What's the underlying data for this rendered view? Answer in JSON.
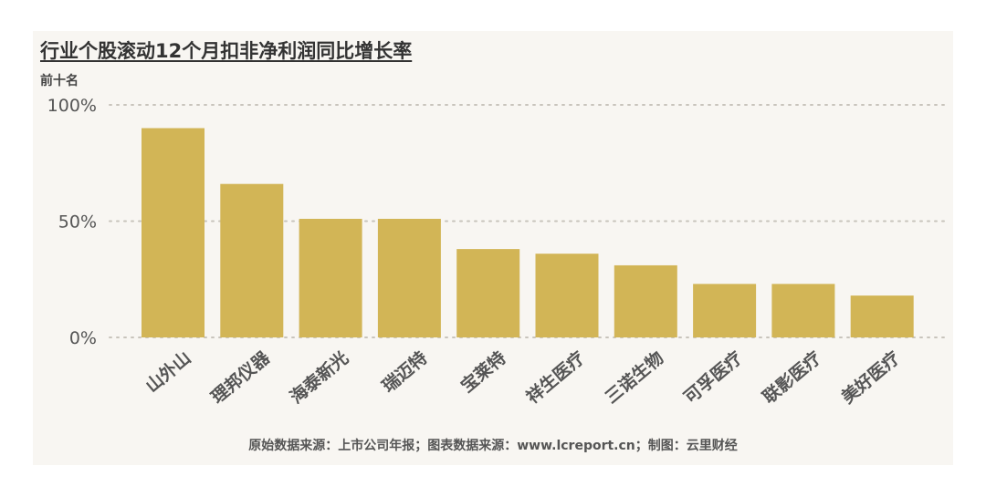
{
  "title": "行业个股滚动12个月扣非净利润同比增长率",
  "subtitle": "前十名",
  "footer": "原始数据来源：上市公司年报；图表数据来源：www.lcreport.cn；制图：云里财经",
  "chart_data": {
    "type": "bar",
    "categories": [
      "山外山",
      "理邦仪器",
      "海泰新光",
      "瑞迈特",
      "宝莱特",
      "祥生医疗",
      "三诺生物",
      "可孚医疗",
      "联影医疗",
      "美好医疗"
    ],
    "values": [
      90,
      66,
      51,
      51,
      38,
      36,
      31,
      23,
      23,
      18
    ],
    "unit": "%",
    "ylim": [
      0,
      100
    ],
    "yticks": [
      0,
      50,
      100
    ],
    "ytick_labels": [
      "0%",
      "50%",
      "100%"
    ],
    "grid": true,
    "legend": "none",
    "colors": {
      "bar": "#d2b556",
      "grid": "#c8c4bc",
      "background": "#f8f6f2"
    }
  }
}
